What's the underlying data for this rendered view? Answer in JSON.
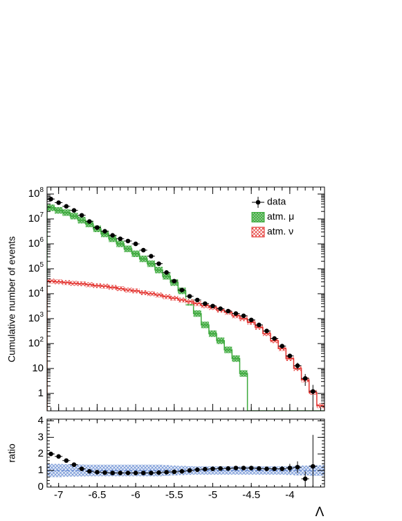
{
  "chart_data": [
    {
      "type": "histogram",
      "y_label": "Cumulative number of events",
      "xlim": [
        -7.15,
        -3.55
      ],
      "xticks": [
        -7,
        -6.5,
        -6,
        -5.5,
        -5,
        -4.5,
        -4
      ],
      "ylim": [
        0.2,
        190000000
      ],
      "log_y": true,
      "yticks": [
        1,
        10,
        {
          "value": 100,
          "label": "10^2"
        },
        {
          "value": 1000,
          "label": "10^3"
        },
        {
          "value": 10000,
          "label": "10^4"
        },
        {
          "value": 100000,
          "label": "10^5"
        },
        {
          "value": 1000000,
          "label": "10^6"
        },
        {
          "value": 10000000,
          "label": "10^7"
        },
        {
          "value": 100000000,
          "label": "10^8"
        }
      ],
      "bin_width": 0.1,
      "legend": "top-right",
      "x": [
        -7.1,
        -7.0,
        -6.9,
        -6.8,
        -6.7,
        -6.6,
        -6.5,
        -6.4,
        -6.3,
        -6.2,
        -6.1,
        -6.0,
        -5.9,
        -5.8,
        -5.7,
        -5.6,
        -5.5,
        -5.4,
        -5.3,
        -5.2,
        -5.1,
        -5.0,
        -4.9,
        -4.8,
        -4.7,
        -4.6,
        -4.5,
        -4.4,
        -4.3,
        -4.2,
        -4.1,
        -4.0,
        -3.9,
        -3.8,
        -3.7,
        -3.6
      ],
      "series": [
        {
          "name": "data",
          "color": "#000000",
          "style": "points",
          "values": [
            63000000,
            45000000,
            32000000,
            22000000,
            14000000,
            7900000,
            4500000,
            3200000,
            2200000,
            1600000,
            1300000,
            1000000,
            560000,
            320000,
            160000,
            71000,
            32000,
            14000,
            7900,
            5600,
            4000,
            3200,
            2500,
            2000,
            1600,
            1300,
            890,
            560,
            320,
            160,
            79,
            32,
            13,
            4,
            1.2,
            null
          ],
          "errors": [
            null,
            null,
            null,
            null,
            null,
            null,
            null,
            null,
            null,
            null,
            null,
            null,
            null,
            null,
            null,
            null,
            null,
            null,
            null,
            null,
            null,
            null,
            null,
            null,
            null,
            null,
            null,
            null,
            null,
            null,
            9,
            6,
            4,
            2,
            1,
            null
          ]
        },
        {
          "name": "atm. μ",
          "color": "#3aa83a",
          "style": "band",
          "band_rel_error": 0.35,
          "values": [
            28000000,
            22000000,
            18000000,
            13000000,
            8900000,
            6300000,
            4000000,
            2500000,
            1600000,
            1000000,
            630000,
            400000,
            250000,
            160000,
            89000,
            50000,
            28000,
            13000,
            4500,
            1600,
            560,
            250,
            130,
            56,
            25,
            6.3,
            null,
            null,
            null,
            null,
            null,
            null,
            null,
            null,
            null,
            null
          ]
        },
        {
          "name": "atm. ν",
          "color": "#e3312d",
          "style": "band",
          "band_rel_error": 0.25,
          "values": [
            32000,
            30000,
            28000,
            26000,
            25000,
            23000,
            21000,
            20000,
            18000,
            16000,
            14000,
            13000,
            11000,
            10000,
            8900,
            7600,
            6600,
            5600,
            4800,
            4000,
            3300,
            2800,
            2200,
            1800,
            1300,
            1000,
            710,
            450,
            250,
            130,
            63,
            25,
            10,
            3.5,
            1.1,
            0.32
          ]
        }
      ]
    },
    {
      "type": "ratio",
      "y_label": "ratio",
      "x_label": "Λ",
      "xlim": [
        -7.15,
        -3.55
      ],
      "xticks": [
        -7,
        -6.5,
        -6,
        -5.5,
        -5,
        -4.5,
        -4
      ],
      "ylim": [
        0,
        4.1
      ],
      "yticks": [
        0,
        1,
        2,
        3,
        4
      ],
      "bin_width": 0.1,
      "reference": 1,
      "band_color": "#5b82cf",
      "color": "#000000",
      "x": [
        -7.1,
        -7.0,
        -6.9,
        -6.8,
        -6.7,
        -6.6,
        -6.5,
        -6.4,
        -6.3,
        -6.2,
        -6.1,
        -6.0,
        -5.9,
        -5.8,
        -5.7,
        -5.6,
        -5.5,
        -5.4,
        -5.3,
        -5.2,
        -5.1,
        -5.0,
        -4.9,
        -4.8,
        -4.7,
        -4.6,
        -4.5,
        -4.4,
        -4.3,
        -4.2,
        -4.1,
        -4.0,
        -3.9,
        -3.8,
        -3.7,
        -3.6
      ],
      "band_errors": [
        0.4,
        0.4,
        0.38,
        0.37,
        0.36,
        0.35,
        0.35,
        0.35,
        0.35,
        0.35,
        0.35,
        0.35,
        0.35,
        0.35,
        0.35,
        0.33,
        0.3,
        0.28,
        0.26,
        0.25,
        0.25,
        0.25,
        0.25,
        0.25,
        0.25,
        0.25,
        0.25,
        0.25,
        0.25,
        0.25,
        0.25,
        0.27,
        0.3,
        0.3,
        0.32,
        0.32
      ],
      "values": [
        2.0,
        1.85,
        1.6,
        1.35,
        1.1,
        0.95,
        0.9,
        0.87,
        0.85,
        0.85,
        0.85,
        0.85,
        0.85,
        0.85,
        0.87,
        0.9,
        0.92,
        0.95,
        1.0,
        1.05,
        1.08,
        1.1,
        1.12,
        1.12,
        1.15,
        1.15,
        1.15,
        1.12,
        1.1,
        1.1,
        1.1,
        1.15,
        1.2,
        0.5,
        1.25,
        null
      ],
      "errors": [
        0.03,
        0.03,
        0.03,
        0.02,
        0.02,
        0.02,
        0.02,
        0.02,
        0.02,
        0.02,
        0.02,
        0.02,
        0.02,
        0.02,
        0.02,
        0.02,
        0.02,
        0.02,
        0.02,
        0.02,
        0.03,
        0.03,
        0.03,
        0.04,
        0.04,
        0.05,
        0.05,
        0.06,
        0.08,
        0.1,
        0.15,
        0.25,
        0.35,
        0.45,
        1.9,
        null
      ]
    }
  ]
}
